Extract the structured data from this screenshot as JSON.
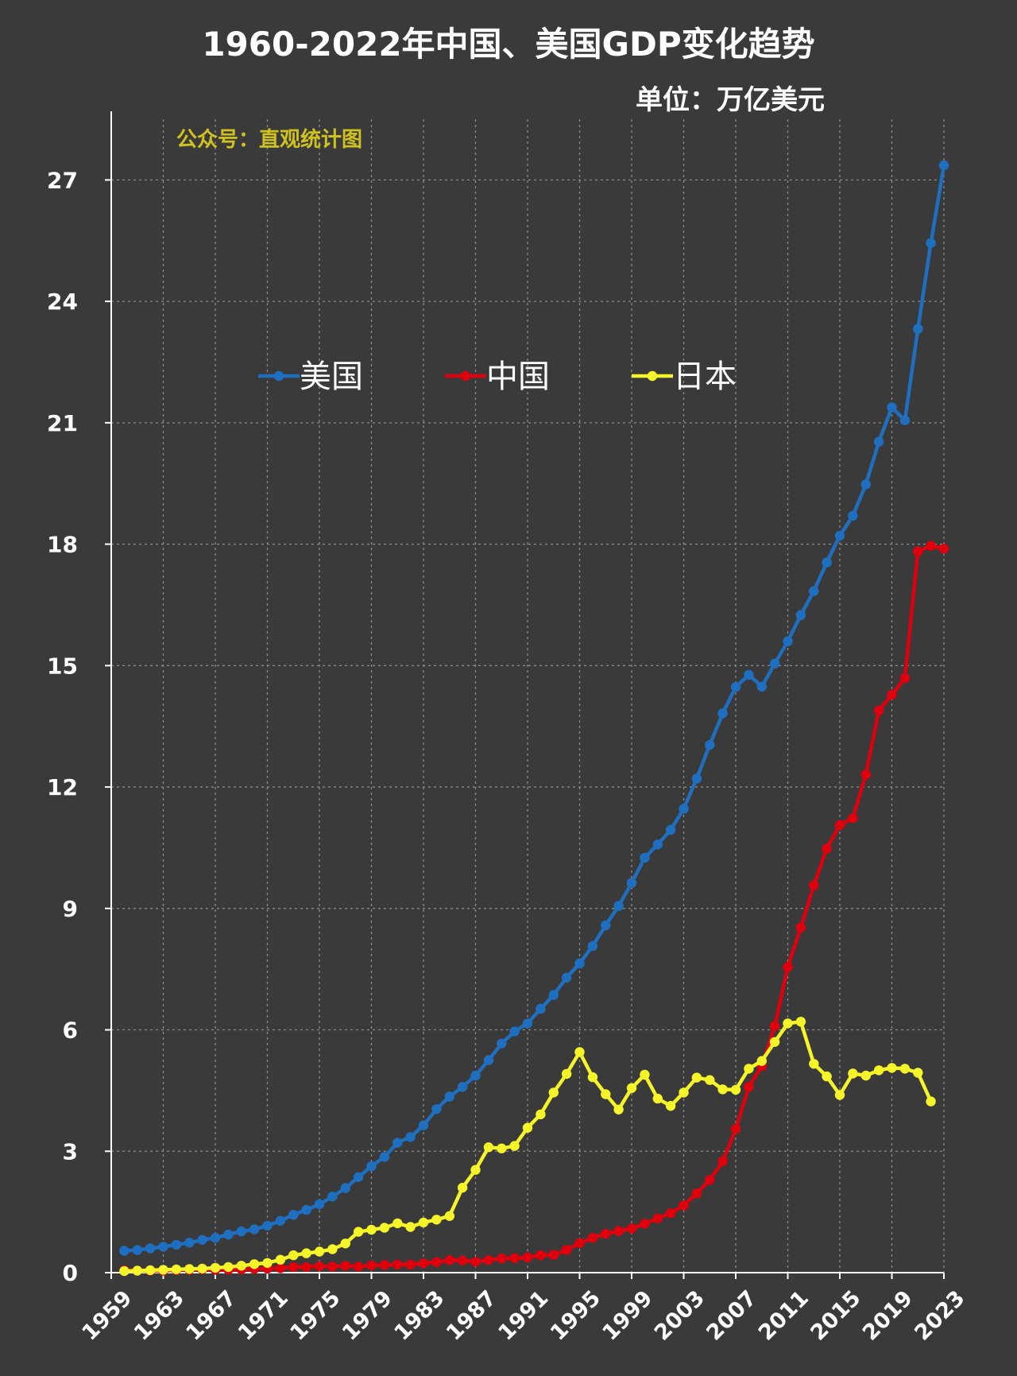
{
  "title": "1960-2022年中国、美国GDP变化趋势",
  "unit_label": "单位：万亿美元",
  "watermark": "公众号：直观统计图",
  "colors": {
    "background": "#3a3a3a",
    "grid": "#8a8a8a",
    "axis_text": "#ffffff",
    "usa": "#1f6fc0",
    "china": "#e0000d",
    "japan": "#f5f52a"
  },
  "chart_data": {
    "type": "line",
    "title": "1960-2022年中国、美国GDP变化趋势",
    "ylabel": "单位：万亿美元",
    "xlim": [
      1959,
      2023
    ],
    "ylim": [
      0,
      28.5
    ],
    "x_ticks": [
      1959,
      1963,
      1967,
      1971,
      1975,
      1979,
      1983,
      1987,
      1991,
      1995,
      1999,
      2003,
      2007,
      2011,
      2015,
      2019,
      2023
    ],
    "y_ticks": [
      0,
      3,
      6,
      9,
      12,
      15,
      18,
      21,
      24,
      27
    ],
    "grid": true,
    "legend_position": "upper-center",
    "series": [
      {
        "name": "美国",
        "color": "#1f6fc0",
        "x": [
          1960,
          1961,
          1962,
          1963,
          1964,
          1965,
          1966,
          1967,
          1968,
          1969,
          1970,
          1971,
          1972,
          1973,
          1974,
          1975,
          1976,
          1977,
          1978,
          1979,
          1980,
          1981,
          1982,
          1983,
          1984,
          1985,
          1986,
          1987,
          1988,
          1989,
          1990,
          1991,
          1992,
          1993,
          1994,
          1995,
          1996,
          1997,
          1998,
          1999,
          2000,
          2001,
          2002,
          2003,
          2004,
          2005,
          2006,
          2007,
          2008,
          2009,
          2010,
          2011,
          2012,
          2013,
          2014,
          2015,
          2016,
          2017,
          2018,
          2019,
          2020,
          2021,
          2022,
          2023
        ],
        "values": [
          0.54,
          0.56,
          0.6,
          0.64,
          0.69,
          0.74,
          0.81,
          0.86,
          0.94,
          1.02,
          1.07,
          1.16,
          1.28,
          1.43,
          1.55,
          1.69,
          1.88,
          2.09,
          2.36,
          2.63,
          2.86,
          3.21,
          3.35,
          3.64,
          4.04,
          4.35,
          4.59,
          4.87,
          5.25,
          5.66,
          5.96,
          6.16,
          6.52,
          6.86,
          7.29,
          7.64,
          8.07,
          8.58,
          9.06,
          9.63,
          10.25,
          10.58,
          10.94,
          11.46,
          12.21,
          13.04,
          13.82,
          14.47,
          14.77,
          14.48,
          15.05,
          15.6,
          16.25,
          16.84,
          17.55,
          18.21,
          18.7,
          19.48,
          20.53,
          21.38,
          21.06,
          23.32,
          25.44,
          27.36
        ]
      },
      {
        "name": "中国",
        "color": "#e0000d",
        "x": [
          1960,
          1961,
          1962,
          1963,
          1964,
          1965,
          1966,
          1967,
          1968,
          1969,
          1970,
          1971,
          1972,
          1973,
          1974,
          1975,
          1976,
          1977,
          1978,
          1979,
          1980,
          1981,
          1982,
          1983,
          1984,
          1985,
          1986,
          1987,
          1988,
          1989,
          1990,
          1991,
          1992,
          1993,
          1994,
          1995,
          1996,
          1997,
          1998,
          1999,
          2000,
          2001,
          2002,
          2003,
          2004,
          2005,
          2006,
          2007,
          2008,
          2009,
          2010,
          2011,
          2012,
          2013,
          2014,
          2015,
          2016,
          2017,
          2018,
          2019,
          2020,
          2021,
          2022,
          2023
        ],
        "values": [
          0.06,
          0.05,
          0.05,
          0.05,
          0.06,
          0.07,
          0.08,
          0.07,
          0.07,
          0.08,
          0.09,
          0.1,
          0.11,
          0.14,
          0.14,
          0.16,
          0.15,
          0.17,
          0.15,
          0.18,
          0.19,
          0.2,
          0.2,
          0.23,
          0.26,
          0.31,
          0.3,
          0.27,
          0.31,
          0.35,
          0.36,
          0.38,
          0.43,
          0.44,
          0.56,
          0.73,
          0.86,
          0.96,
          1.03,
          1.09,
          1.21,
          1.34,
          1.47,
          1.66,
          1.96,
          2.29,
          2.75,
          3.55,
          4.59,
          5.1,
          6.09,
          7.55,
          8.53,
          9.57,
          10.48,
          11.06,
          11.23,
          12.31,
          13.89,
          14.28,
          14.69,
          17.82,
          17.96,
          17.89
        ]
      },
      {
        "name": "日本",
        "color": "#f5f52a",
        "x": [
          1960,
          1961,
          1962,
          1963,
          1964,
          1965,
          1966,
          1967,
          1968,
          1969,
          1970,
          1971,
          1972,
          1973,
          1974,
          1975,
          1976,
          1977,
          1978,
          1979,
          1980,
          1981,
          1982,
          1983,
          1984,
          1985,
          1986,
          1987,
          1988,
          1989,
          1990,
          1991,
          1992,
          1993,
          1994,
          1995,
          1996,
          1997,
          1998,
          1999,
          2000,
          2001,
          2002,
          2003,
          2004,
          2005,
          2006,
          2007,
          2008,
          2009,
          2010,
          2011,
          2012,
          2013,
          2014,
          2015,
          2016,
          2017,
          2018,
          2019,
          2020,
          2021,
          2022
        ],
        "values": [
          0.04,
          0.05,
          0.06,
          0.07,
          0.08,
          0.09,
          0.1,
          0.12,
          0.14,
          0.17,
          0.21,
          0.24,
          0.32,
          0.43,
          0.48,
          0.52,
          0.58,
          0.72,
          1.01,
          1.06,
          1.11,
          1.22,
          1.13,
          1.24,
          1.31,
          1.4,
          2.1,
          2.54,
          3.1,
          3.07,
          3.13,
          3.58,
          3.91,
          4.45,
          4.91,
          5.45,
          4.83,
          4.41,
          4.03,
          4.56,
          4.89,
          4.3,
          4.12,
          4.45,
          4.82,
          4.76,
          4.53,
          4.52,
          5.04,
          5.23,
          5.7,
          6.16,
          6.2,
          5.16,
          4.85,
          4.39,
          4.92,
          4.87,
          5.0,
          5.06,
          5.04,
          4.94,
          4.23
        ]
      }
    ]
  }
}
